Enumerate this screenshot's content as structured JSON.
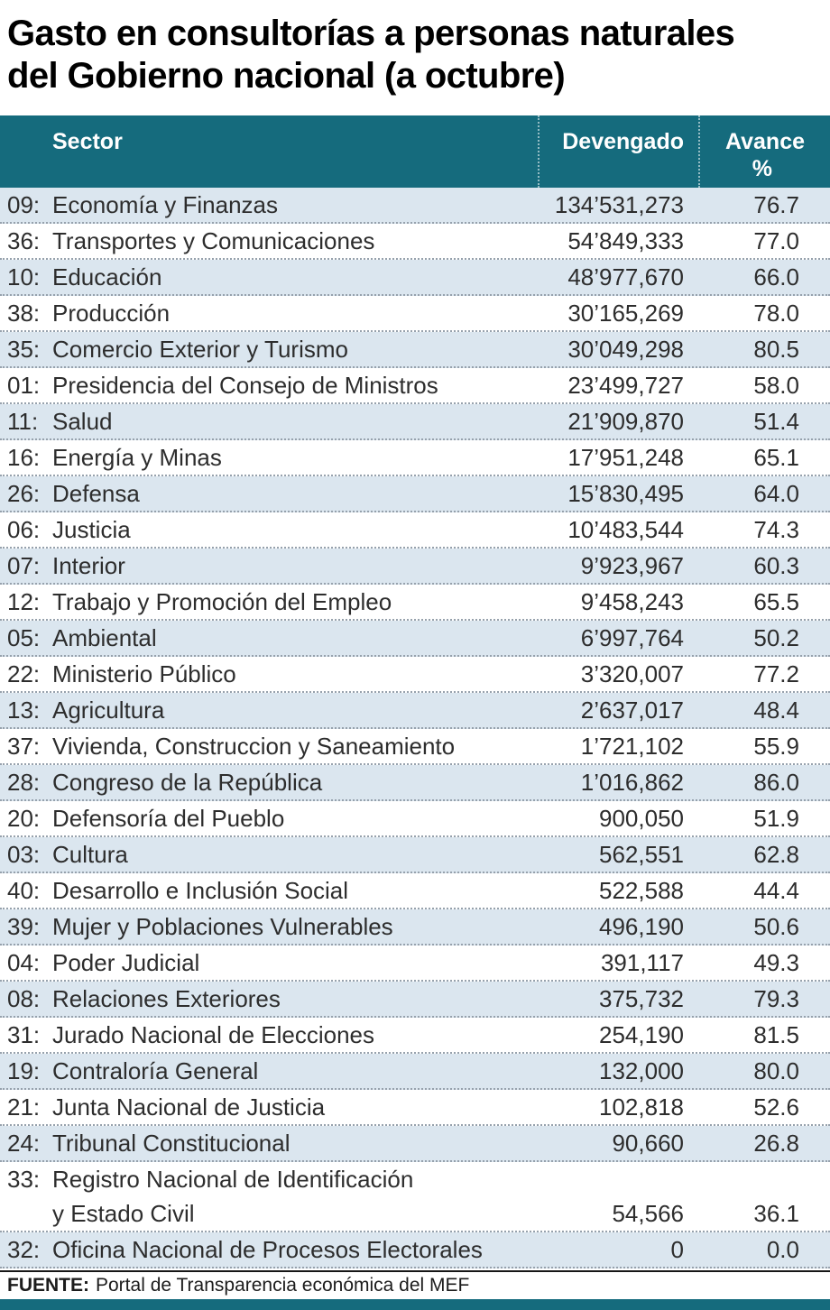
{
  "title": {
    "line1": "Gasto en consultorías a personas naturales",
    "line2": "del Gobierno nacional (a octubre)"
  },
  "table": {
    "header": {
      "sector": "Sector",
      "devengado": "Devengado",
      "avance": "Avance",
      "avance_unit": "%"
    }
  },
  "source": {
    "label": "FUENTE:",
    "text": "Portal de Transparencia económica del MEF"
  },
  "colors": {
    "header_bg": "#156b7d",
    "row_alt": "#dbe6ef",
    "rule": "#96a1ac",
    "footer_bar": "#156b7d"
  },
  "chart_data": {
    "type": "table",
    "title": "Gasto en consultorías a personas naturales del Gobierno nacional (a octubre)",
    "columns": [
      "Sector",
      "Devengado",
      "Avance %"
    ],
    "rows": [
      {
        "code": "09:",
        "sector": "Economía y Finanzas",
        "devengado": "134’531,273",
        "avance": "76.7"
      },
      {
        "code": "36:",
        "sector": "Transportes y Comunicaciones",
        "devengado": "54’849,333",
        "avance": "77.0"
      },
      {
        "code": "10:",
        "sector": "Educación",
        "devengado": "48’977,670",
        "avance": "66.0"
      },
      {
        "code": "38:",
        "sector": "Producción",
        "devengado": "30’165,269",
        "avance": "78.0"
      },
      {
        "code": "35:",
        "sector": "Comercio Exterior y Turismo",
        "devengado": "30’049,298",
        "avance": "80.5"
      },
      {
        "code": "01:",
        "sector": "Presidencia del Consejo de Ministros",
        "devengado": "23’499,727",
        "avance": "58.0"
      },
      {
        "code": "11:",
        "sector": "Salud",
        "devengado": "21’909,870",
        "avance": "51.4"
      },
      {
        "code": "16:",
        "sector": "Energía y Minas",
        "devengado": "17’951,248",
        "avance": "65.1"
      },
      {
        "code": "26:",
        "sector": "Defensa",
        "devengado": "15’830,495",
        "avance": "64.0"
      },
      {
        "code": "06:",
        "sector": "Justicia",
        "devengado": "10’483,544",
        "avance": "74.3"
      },
      {
        "code": "07:",
        "sector": "Interior",
        "devengado": "9’923,967",
        "avance": "60.3"
      },
      {
        "code": "12:",
        "sector": "Trabajo y Promoción del Empleo",
        "devengado": "9’458,243",
        "avance": "65.5"
      },
      {
        "code": "05:",
        "sector": "Ambiental",
        "devengado": "6’997,764",
        "avance": "50.2"
      },
      {
        "code": "22:",
        "sector": "Ministerio Público",
        "devengado": "3’320,007",
        "avance": "77.2"
      },
      {
        "code": "13:",
        "sector": "Agricultura",
        "devengado": "2’637,017",
        "avance": "48.4"
      },
      {
        "code": "37:",
        "sector": "Vivienda, Construccion y Saneamiento",
        "devengado": "1’721,102",
        "avance": "55.9"
      },
      {
        "code": "28:",
        "sector": "Congreso de la República",
        "devengado": "1’016,862",
        "avance": "86.0"
      },
      {
        "code": "20:",
        "sector": "Defensoría del Pueblo",
        "devengado": "900,050",
        "avance": "51.9"
      },
      {
        "code": "03:",
        "sector": "Cultura",
        "devengado": "562,551",
        "avance": "62.8"
      },
      {
        "code": "40:",
        "sector": "Desarrollo e Inclusión Social",
        "devengado": "522,588",
        "avance": "44.4"
      },
      {
        "code": "39:",
        "sector": "Mujer y Poblaciones Vulnerables",
        "devengado": "496,190",
        "avance": "50.6"
      },
      {
        "code": "04:",
        "sector": "Poder Judicial",
        "devengado": "391,117",
        "avance": "49.3"
      },
      {
        "code": "08:",
        "sector": "Relaciones Exteriores",
        "devengado": "375,732",
        "avance": "79.3"
      },
      {
        "code": "31:",
        "sector": "Jurado Nacional de Elecciones",
        "devengado": "254,190",
        "avance": "81.5"
      },
      {
        "code": "19:",
        "sector": "Contraloría General",
        "devengado": "132,000",
        "avance": "80.0"
      },
      {
        "code": "21:",
        "sector": "Junta Nacional de Justicia",
        "devengado": "102,818",
        "avance": "52.6"
      },
      {
        "code": "24:",
        "sector": "Tribunal Constitucional",
        "devengado": "90,660",
        "avance": "26.8"
      },
      {
        "code": "33:",
        "sector": "Registro Nacional de Identificación",
        "sector_line2": "y Estado Civil",
        "devengado": "54,566",
        "avance": "36.1"
      },
      {
        "code": "32:",
        "sector": "Oficina Nacional de Procesos Electorales",
        "devengado": "0",
        "avance": "0.0"
      }
    ],
    "source": "FUENTE: Portal de Transparencia económica del MEF"
  }
}
